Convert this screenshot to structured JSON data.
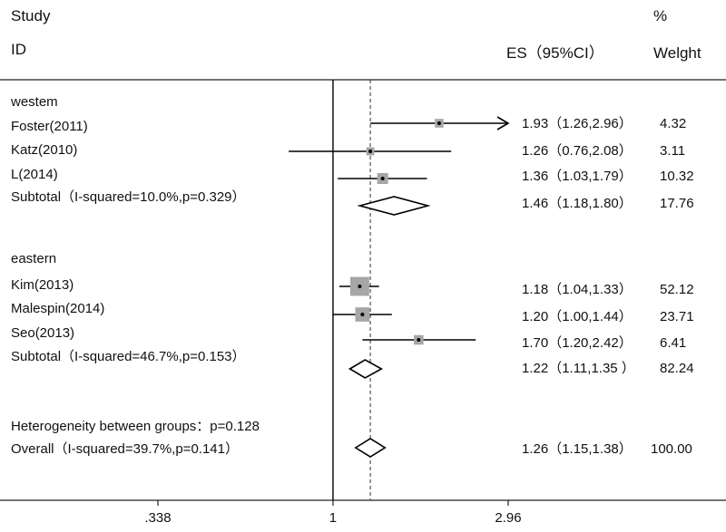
{
  "header": {
    "study": "Study",
    "id": "ID",
    "es": "ES（95%CI）",
    "pct": "%",
    "weight": "Welght"
  },
  "chart_data": {
    "type": "forest",
    "x_scale": "log",
    "xlim": [
      0.338,
      2.96
    ],
    "x_ticks": [
      ".338",
      "1",
      "2.96"
    ],
    "x_tick_values": [
      0.338,
      1,
      2.96
    ],
    "null_line": 1,
    "overall_effect": 1.26,
    "rows": [
      {
        "kind": "group",
        "label": "westem"
      },
      {
        "kind": "study",
        "label": "Foster(2011)",
        "es": 1.93,
        "lo": 1.26,
        "hi": 2.96,
        "ci_text": "1.93（1.26,2.96）",
        "weight": "4.32",
        "arrow": true
      },
      {
        "kind": "study",
        "label": "Katz(2010)",
        "es": 1.26,
        "lo": 0.76,
        "hi": 2.08,
        "ci_text": "1.26（0.76,2.08）",
        "weight": "3.11"
      },
      {
        "kind": "study",
        "label": "L(2014)",
        "es": 1.36,
        "lo": 1.03,
        "hi": 1.79,
        "ci_text": "1.36（1.03,1.79）",
        "weight": "10.32"
      },
      {
        "kind": "subtotal",
        "label": "Subtotal（I-squared=10.0%,p=0.329）",
        "es": 1.46,
        "lo": 1.18,
        "hi": 1.8,
        "ci_text": "1.46（1.18,1.80）",
        "weight": "17.76"
      },
      {
        "kind": "group",
        "label": "eastern"
      },
      {
        "kind": "study",
        "label": "Kim(2013)",
        "es": 1.18,
        "lo": 1.04,
        "hi": 1.33,
        "ci_text": "1.18（1.04,1.33）",
        "weight": "52.12"
      },
      {
        "kind": "study",
        "label": "Malespin(2014)",
        "es": 1.2,
        "lo": 1.0,
        "hi": 1.44,
        "ci_text": "1.20（1.00,1.44）",
        "weight": "23.71"
      },
      {
        "kind": "study",
        "label": "Seo(2013)",
        "es": 1.7,
        "lo": 1.2,
        "hi": 2.42,
        "ci_text": "1.70（1.20,2.42）",
        "weight": "6.41"
      },
      {
        "kind": "subtotal",
        "label": "Subtotal（I-squared=46.7%,p=0.153）",
        "es": 1.22,
        "lo": 1.11,
        "hi": 1.35,
        "ci_text": "1.22（1.11,1.35 ）",
        "weight": "82.24"
      },
      {
        "kind": "note",
        "label": "Heterogeneity between groups：p=0.128"
      },
      {
        "kind": "overall",
        "label": "Overall（I-squared=39.7%,p=0.141）",
        "es": 1.26,
        "lo": 1.15,
        "hi": 1.38,
        "ci_text": "1.26（1.15,1.38）",
        "weight": "100.00"
      }
    ]
  }
}
